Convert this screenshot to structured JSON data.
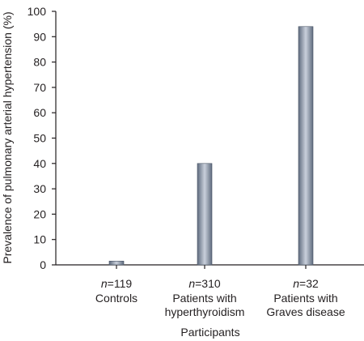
{
  "chart_data": {
    "type": "bar",
    "ylabel": "Prevalence of pulmonary arterial hypertension (%)",
    "xlabel": "Participants",
    "ylim": [
      0,
      100
    ],
    "yticks": [
      0,
      10,
      20,
      30,
      40,
      50,
      60,
      70,
      80,
      90,
      100
    ],
    "grid": false,
    "categories": [
      {
        "n_prefix": "n",
        "n_value": "=119",
        "lines": [
          "Controls"
        ]
      },
      {
        "n_prefix": "n",
        "n_value": "=310",
        "lines": [
          "Patients with",
          "hyperthyroidism"
        ]
      },
      {
        "n_prefix": "n",
        "n_value": "=32",
        "lines": [
          "Patients with",
          "Graves disease"
        ]
      }
    ],
    "values": [
      1.5,
      40,
      94
    ],
    "bar_color_dark": "#5f6b7e",
    "bar_color_light": "#c9d0db"
  }
}
